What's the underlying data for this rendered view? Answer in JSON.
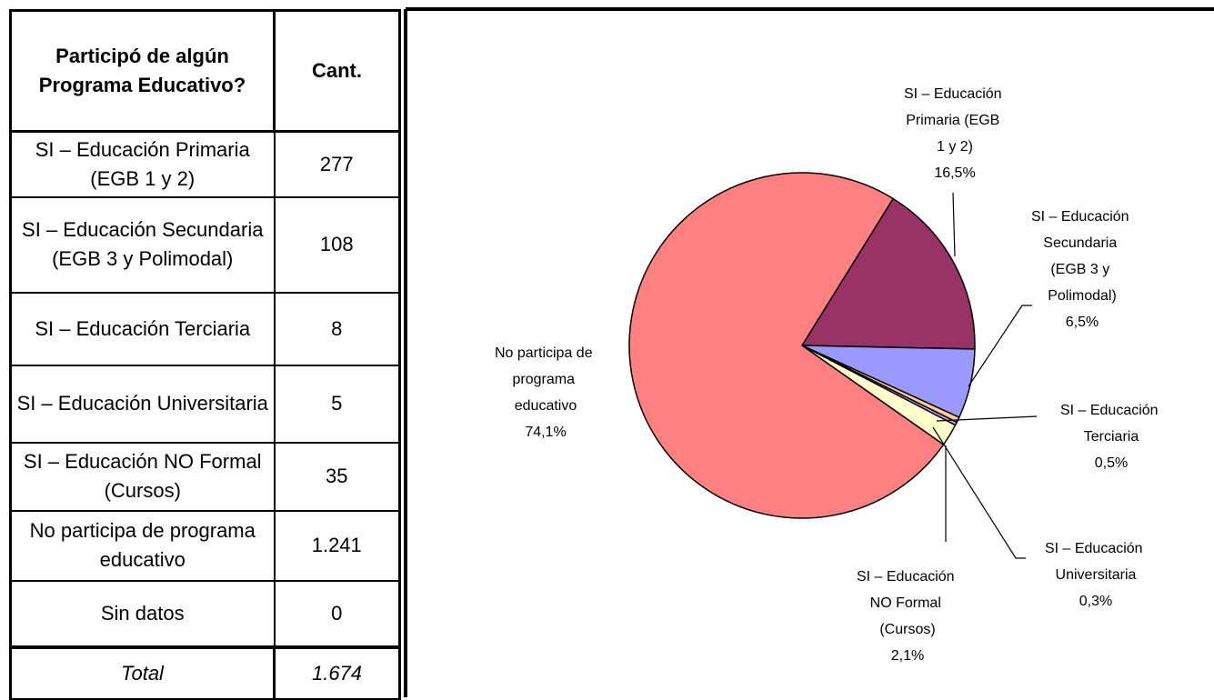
{
  "table": {
    "header": [
      "Participó de algún Programa Educativo?",
      "Cant."
    ],
    "rows": [
      [
        "SI – Educación Primaria (EGB 1 y 2)",
        "277"
      ],
      [
        "SI – Educación Secundaria (EGB 3 y Polimodal)",
        "108"
      ],
      [
        "SI – Educación Terciaria",
        "8"
      ],
      [
        "SI – Educación Universitaria",
        "5"
      ],
      [
        "SI – Educación NO Formal (Cursos)",
        "35"
      ],
      [
        "No participa de programa educativo",
        "1.241"
      ],
      [
        "Sin datos",
        "0"
      ]
    ],
    "total": [
      "Total",
      "1.674"
    ]
  },
  "chart_data": {
    "type": "pie",
    "categories": [
      "SI – Educación Primaria (EGB 1 y 2)",
      "SI – Educación Secundaria (EGB 3 y Polimodal)",
      "SI – Educación Terciaria",
      "SI – Educación Universitaria",
      "SI – Educación NO Formal (Cursos)",
      "No participa de programa educativo"
    ],
    "values": [
      16.5,
      6.5,
      0.5,
      0.3,
      2.1,
      74.1
    ],
    "value_labels": [
      "16,5%",
      "6,5%",
      "0,5%",
      "0,3%",
      "2,1%",
      "74,1%"
    ],
    "colors": [
      "#993366",
      "#9999ff",
      "#ffcc99",
      "#cc99ff",
      "#ffffcc",
      "#ff8080"
    ]
  }
}
